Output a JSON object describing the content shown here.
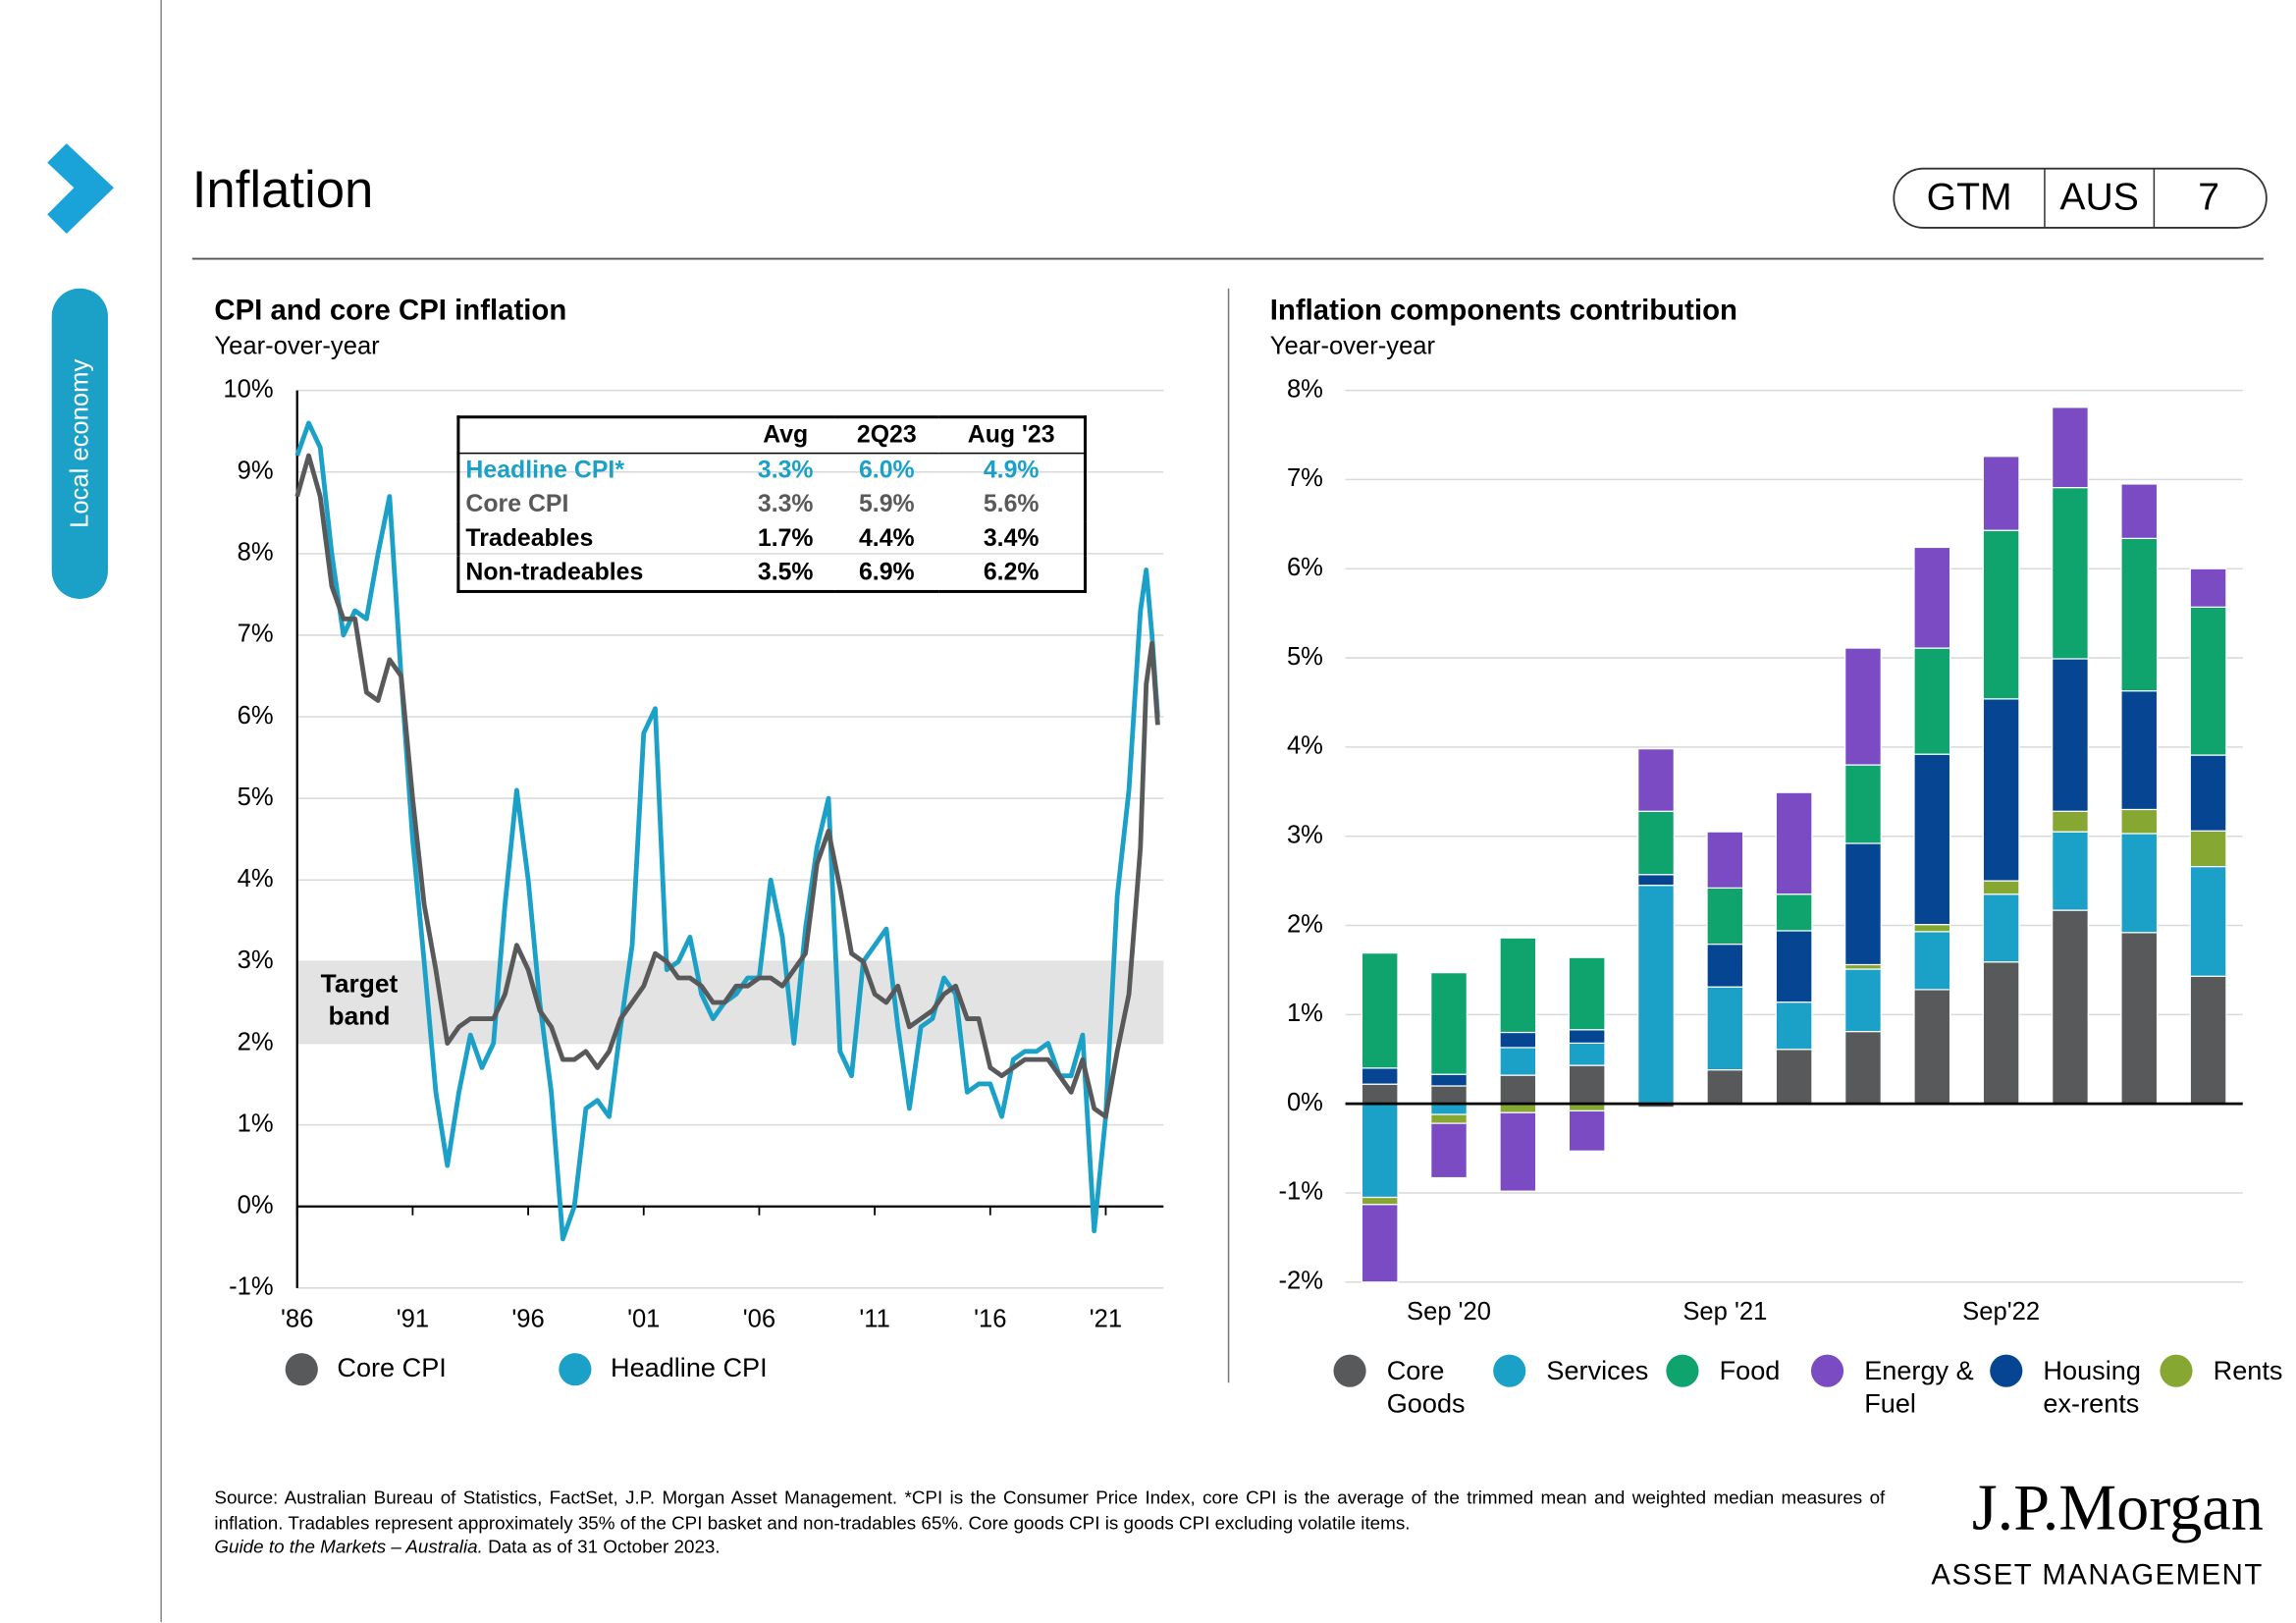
{
  "header": {
    "title": "Inflation",
    "section": "Local economy",
    "badge": [
      "GTM",
      "AUS",
      "7"
    ]
  },
  "chart_data": [
    {
      "type": "line",
      "title": "CPI and core CPI inflation",
      "subtitle": "Year-over-year",
      "x": [
        1986,
        1986.5,
        1987,
        1987.5,
        1988,
        1988.5,
        1989,
        1989.5,
        1990,
        1990.5,
        1991,
        1991.5,
        1992,
        1992.5,
        1993,
        1993.5,
        1994,
        1994.5,
        1995,
        1995.5,
        1996,
        1996.5,
        1997,
        1997.5,
        1998,
        1998.5,
        1999,
        1999.5,
        2000,
        2000.5,
        2001,
        2001.5,
        2002,
        2002.5,
        2003,
        2003.5,
        2004,
        2004.5,
        2005,
        2005.5,
        2006,
        2006.5,
        2007,
        2007.5,
        2008,
        2008.5,
        2009,
        2009.5,
        2010,
        2010.5,
        2011,
        2011.5,
        2012,
        2012.5,
        2013,
        2013.5,
        2014,
        2014.5,
        2015,
        2015.5,
        2016,
        2016.5,
        2017,
        2017.5,
        2018,
        2018.5,
        2019,
        2019.5,
        2020,
        2020.5,
        2021,
        2021.5,
        2022,
        2022.5,
        2022.75,
        2023,
        2023.25
      ],
      "series": [
        {
          "name": "Core CPI",
          "color": "#58595b",
          "values": [
            8.7,
            9.2,
            8.7,
            7.6,
            7.2,
            7.2,
            6.3,
            6.2,
            6.7,
            6.5,
            5.0,
            3.7,
            2.9,
            2.0,
            2.2,
            2.3,
            2.3,
            2.3,
            2.6,
            3.2,
            2.9,
            2.4,
            2.2,
            1.8,
            1.8,
            1.9,
            1.7,
            1.9,
            2.3,
            2.5,
            2.7,
            3.1,
            3.0,
            2.8,
            2.8,
            2.7,
            2.5,
            2.5,
            2.7,
            2.7,
            2.8,
            2.8,
            2.7,
            2.9,
            3.1,
            4.2,
            4.6,
            3.9,
            3.1,
            3.0,
            2.6,
            2.5,
            2.7,
            2.2,
            2.3,
            2.4,
            2.6,
            2.7,
            2.3,
            2.3,
            1.7,
            1.6,
            1.7,
            1.8,
            1.8,
            1.8,
            1.6,
            1.4,
            1.8,
            1.2,
            1.1,
            1.9,
            2.6,
            4.4,
            6.4,
            6.9,
            5.9
          ]
        },
        {
          "name": "Headline CPI",
          "color": "#1ba1c8",
          "values": [
            9.2,
            9.6,
            9.3,
            8.0,
            7.0,
            7.3,
            7.2,
            8.0,
            8.7,
            6.5,
            4.5,
            3.0,
            1.4,
            0.5,
            1.4,
            2.1,
            1.7,
            2.0,
            3.7,
            5.1,
            4.0,
            2.5,
            1.4,
            -0.4,
            0.0,
            1.2,
            1.3,
            1.1,
            2.2,
            3.2,
            5.8,
            6.1,
            2.9,
            3.0,
            3.3,
            2.6,
            2.3,
            2.5,
            2.6,
            2.8,
            2.8,
            4.0,
            3.3,
            2.0,
            3.4,
            4.4,
            5.0,
            1.9,
            1.6,
            3.0,
            3.2,
            3.4,
            2.2,
            1.2,
            2.2,
            2.3,
            2.8,
            2.6,
            1.4,
            1.5,
            1.5,
            1.1,
            1.8,
            1.9,
            1.9,
            2.0,
            1.6,
            1.6,
            2.1,
            -0.3,
            1.1,
            3.8,
            5.1,
            7.3,
            7.8,
            7.0,
            6.0
          ]
        }
      ],
      "xlim": [
        1986,
        2023.5
      ],
      "xticks": [
        {
          "value": 1986,
          "label": "'86"
        },
        {
          "value": 1991,
          "label": "'91"
        },
        {
          "value": 1996,
          "label": "'96"
        },
        {
          "value": 2001,
          "label": "'01"
        },
        {
          "value": 2006,
          "label": "'06"
        },
        {
          "value": 2011,
          "label": "'11"
        },
        {
          "value": 2016,
          "label": "'16"
        },
        {
          "value": 2021,
          "label": "'21"
        }
      ],
      "ylim": [
        -1,
        10
      ],
      "yticks": [
        {
          "value": -1,
          "label": "-1%"
        },
        {
          "value": 0,
          "label": "0%"
        },
        {
          "value": 1,
          "label": "1%"
        },
        {
          "value": 2,
          "label": "2%"
        },
        {
          "value": 3,
          "label": "3%"
        },
        {
          "value": 4,
          "label": "4%"
        },
        {
          "value": 5,
          "label": "5%"
        },
        {
          "value": 6,
          "label": "6%"
        },
        {
          "value": 7,
          "label": "7%"
        },
        {
          "value": 8,
          "label": "8%"
        },
        {
          "value": 9,
          "label": "9%"
        },
        {
          "value": 10,
          "label": "10%"
        }
      ],
      "grid": true,
      "annotations": [
        {
          "label": "Target band",
          "from": 2,
          "to": 3
        }
      ]
    },
    {
      "type": "stacked_bar",
      "title": "Inflation components contribution",
      "subtitle": "Year-over-year",
      "categories": [
        null,
        "Sep '20",
        null,
        null,
        null,
        "Sep '21",
        null,
        null,
        null,
        "Sep'22",
        null,
        null,
        null
      ],
      "series": [
        {
          "name": "Core Goods",
          "color": "#58595b",
          "values": [
            0.22,
            0.2,
            0.32,
            0.43,
            -0.04,
            0.38,
            0.61,
            0.81,
            1.28,
            1.59,
            2.17,
            1.92,
            1.43
          ]
        },
        {
          "name": "Services",
          "color": "#1ba1c8",
          "values": [
            -1.05,
            -0.12,
            0.31,
            0.25,
            2.45,
            0.93,
            0.53,
            0.7,
            0.65,
            0.76,
            0.88,
            1.11,
            1.23
          ]
        },
        {
          "name": "Food",
          "color": "#0fa36e",
          "values": [
            1.29,
            1.14,
            1.06,
            0.81,
            0.71,
            0.63,
            0.41,
            0.88,
            1.19,
            1.89,
            1.92,
            1.71,
            1.66
          ]
        },
        {
          "name": "Energy & Fuel",
          "color": "#7a4bc2",
          "values": [
            -0.87,
            -0.61,
            -0.88,
            -0.45,
            0.7,
            0.63,
            1.14,
            1.31,
            1.13,
            0.83,
            0.9,
            0.61,
            0.43
          ]
        },
        {
          "name": "Housing ex-rents",
          "color": "#064592",
          "values": [
            0.18,
            0.13,
            0.17,
            0.15,
            0.12,
            0.48,
            0.8,
            1.36,
            1.91,
            2.04,
            1.71,
            1.33,
            0.85
          ]
        },
        {
          "name": "Rents",
          "color": "#86a832",
          "values": [
            -0.08,
            -0.1,
            -0.1,
            -0.08,
            0,
            0,
            0,
            0.05,
            0.08,
            0.15,
            0.23,
            0.27,
            0.4
          ]
        }
      ],
      "stack_order": [
        0,
        1,
        5,
        4,
        2,
        3
      ],
      "ylim": [
        -2,
        8
      ],
      "yticks": [
        {
          "value": -2,
          "label": "-2%"
        },
        {
          "value": -1,
          "label": "-1%"
        },
        {
          "value": 0,
          "label": "0%"
        },
        {
          "value": 1,
          "label": "1%"
        },
        {
          "value": 2,
          "label": "2%"
        },
        {
          "value": 3,
          "label": "3%"
        },
        {
          "value": 4,
          "label": "4%"
        },
        {
          "value": 5,
          "label": "5%"
        },
        {
          "value": 6,
          "label": "6%"
        },
        {
          "value": 7,
          "label": "7%"
        },
        {
          "value": 8,
          "label": "8%"
        }
      ],
      "grid": true
    }
  ],
  "table": {
    "columns": [
      "Avg",
      "2Q23",
      "Aug '23"
    ],
    "rows": [
      {
        "name": "Headline CPI*",
        "color": "#1ba1c8",
        "values": [
          "3.3%",
          "6.0%",
          "4.9%"
        ]
      },
      {
        "name": "Core CPI",
        "color": "#58595b",
        "values": [
          "3.3%",
          "5.9%",
          "5.6%"
        ]
      },
      {
        "name": "Tradeables",
        "color": "#000000",
        "values": [
          "1.7%",
          "4.4%",
          "3.4%"
        ]
      },
      {
        "name": "Non-tradeables",
        "color": "#000000",
        "values": [
          "3.5%",
          "6.9%",
          "6.2%"
        ]
      }
    ]
  },
  "footer": {
    "source": "Source: Australian Bureau of Statistics, FactSet, J.P. Morgan Asset Management. *CPI is the Consumer Price Index, core CPI is the average of the trimmed mean and weighted median measures of inflation. Tradables represent approximately 35% of the CPI basket and non-tradables 65%. Core goods CPI is goods CPI excluding volatile items.",
    "guide": "Guide to the Markets – Australia.",
    "date": "Data as of 31 October 2023.",
    "logo": "J.P.Morgan",
    "logo_sub": "ASSET MANAGEMENT"
  }
}
